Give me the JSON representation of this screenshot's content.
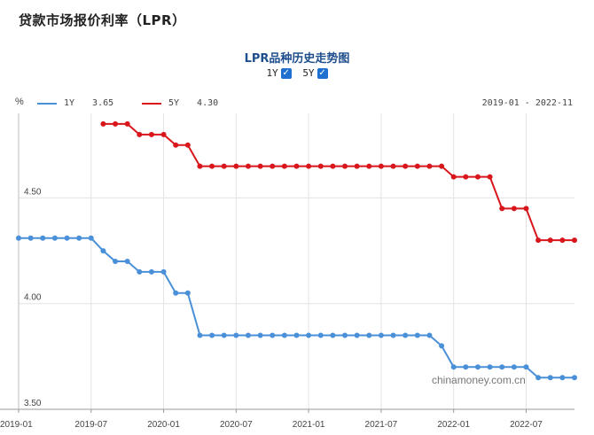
{
  "page": {
    "title": "贷款市场报价利率（LPR）"
  },
  "controls": {
    "toggles": [
      {
        "label": "1Y",
        "checked": true
      },
      {
        "label": "5Y",
        "checked": true
      }
    ]
  },
  "watermark": "chinamoney.com.cn",
  "colors": {
    "1Y": "#4a90d9",
    "5Y": "#d9161b",
    "checkbox": "#1f6fd1"
  },
  "chart_data": {
    "type": "line",
    "title": "LPR品种历史走势图",
    "unit": "%",
    "date_range": "2019-01 - 2022-11",
    "ylim": [
      3.5,
      4.9
    ],
    "yticks": [
      "3.50",
      "4.00",
      "4.50"
    ],
    "xticks": [
      "2019-01",
      "2019-07",
      "2020-01",
      "2020-07",
      "2021-01",
      "2021-07",
      "2022-01",
      "2022-07"
    ],
    "legend_position": "top-left",
    "grid": true,
    "series": [
      {
        "name": "1Y",
        "latest": "3.65",
        "x": [
          "2019-01",
          "2019-02",
          "2019-03",
          "2019-04",
          "2019-05",
          "2019-06",
          "2019-07",
          "2019-08",
          "2019-09",
          "2019-10",
          "2019-11",
          "2019-12",
          "2020-01",
          "2020-02",
          "2020-03",
          "2020-04",
          "2020-05",
          "2020-06",
          "2020-07",
          "2020-08",
          "2020-09",
          "2020-10",
          "2020-11",
          "2020-12",
          "2021-01",
          "2021-02",
          "2021-03",
          "2021-04",
          "2021-05",
          "2021-06",
          "2021-07",
          "2021-08",
          "2021-09",
          "2021-10",
          "2021-11",
          "2021-12",
          "2022-01",
          "2022-02",
          "2022-03",
          "2022-04",
          "2022-05",
          "2022-06",
          "2022-07",
          "2022-08",
          "2022-09",
          "2022-10",
          "2022-11"
        ],
        "values": [
          4.31,
          4.31,
          4.31,
          4.31,
          4.31,
          4.31,
          4.31,
          4.25,
          4.2,
          4.2,
          4.15,
          4.15,
          4.15,
          4.05,
          4.05,
          3.85,
          3.85,
          3.85,
          3.85,
          3.85,
          3.85,
          3.85,
          3.85,
          3.85,
          3.85,
          3.85,
          3.85,
          3.85,
          3.85,
          3.85,
          3.85,
          3.85,
          3.85,
          3.85,
          3.85,
          3.8,
          3.7,
          3.7,
          3.7,
          3.7,
          3.7,
          3.7,
          3.7,
          3.65,
          3.65,
          3.65,
          3.65
        ]
      },
      {
        "name": "5Y",
        "latest": "4.30",
        "x": [
          "2019-08",
          "2019-09",
          "2019-10",
          "2019-11",
          "2019-12",
          "2020-01",
          "2020-02",
          "2020-03",
          "2020-04",
          "2020-05",
          "2020-06",
          "2020-07",
          "2020-08",
          "2020-09",
          "2020-10",
          "2020-11",
          "2020-12",
          "2021-01",
          "2021-02",
          "2021-03",
          "2021-04",
          "2021-05",
          "2021-06",
          "2021-07",
          "2021-08",
          "2021-09",
          "2021-10",
          "2021-11",
          "2021-12",
          "2022-01",
          "2022-02",
          "2022-03",
          "2022-04",
          "2022-05",
          "2022-06",
          "2022-07",
          "2022-08",
          "2022-09",
          "2022-10",
          "2022-11"
        ],
        "values": [
          4.85,
          4.85,
          4.85,
          4.8,
          4.8,
          4.8,
          4.75,
          4.75,
          4.65,
          4.65,
          4.65,
          4.65,
          4.65,
          4.65,
          4.65,
          4.65,
          4.65,
          4.65,
          4.65,
          4.65,
          4.65,
          4.65,
          4.65,
          4.65,
          4.65,
          4.65,
          4.65,
          4.65,
          4.65,
          4.6,
          4.6,
          4.6,
          4.6,
          4.45,
          4.45,
          4.45,
          4.3,
          4.3,
          4.3,
          4.3
        ]
      }
    ]
  }
}
